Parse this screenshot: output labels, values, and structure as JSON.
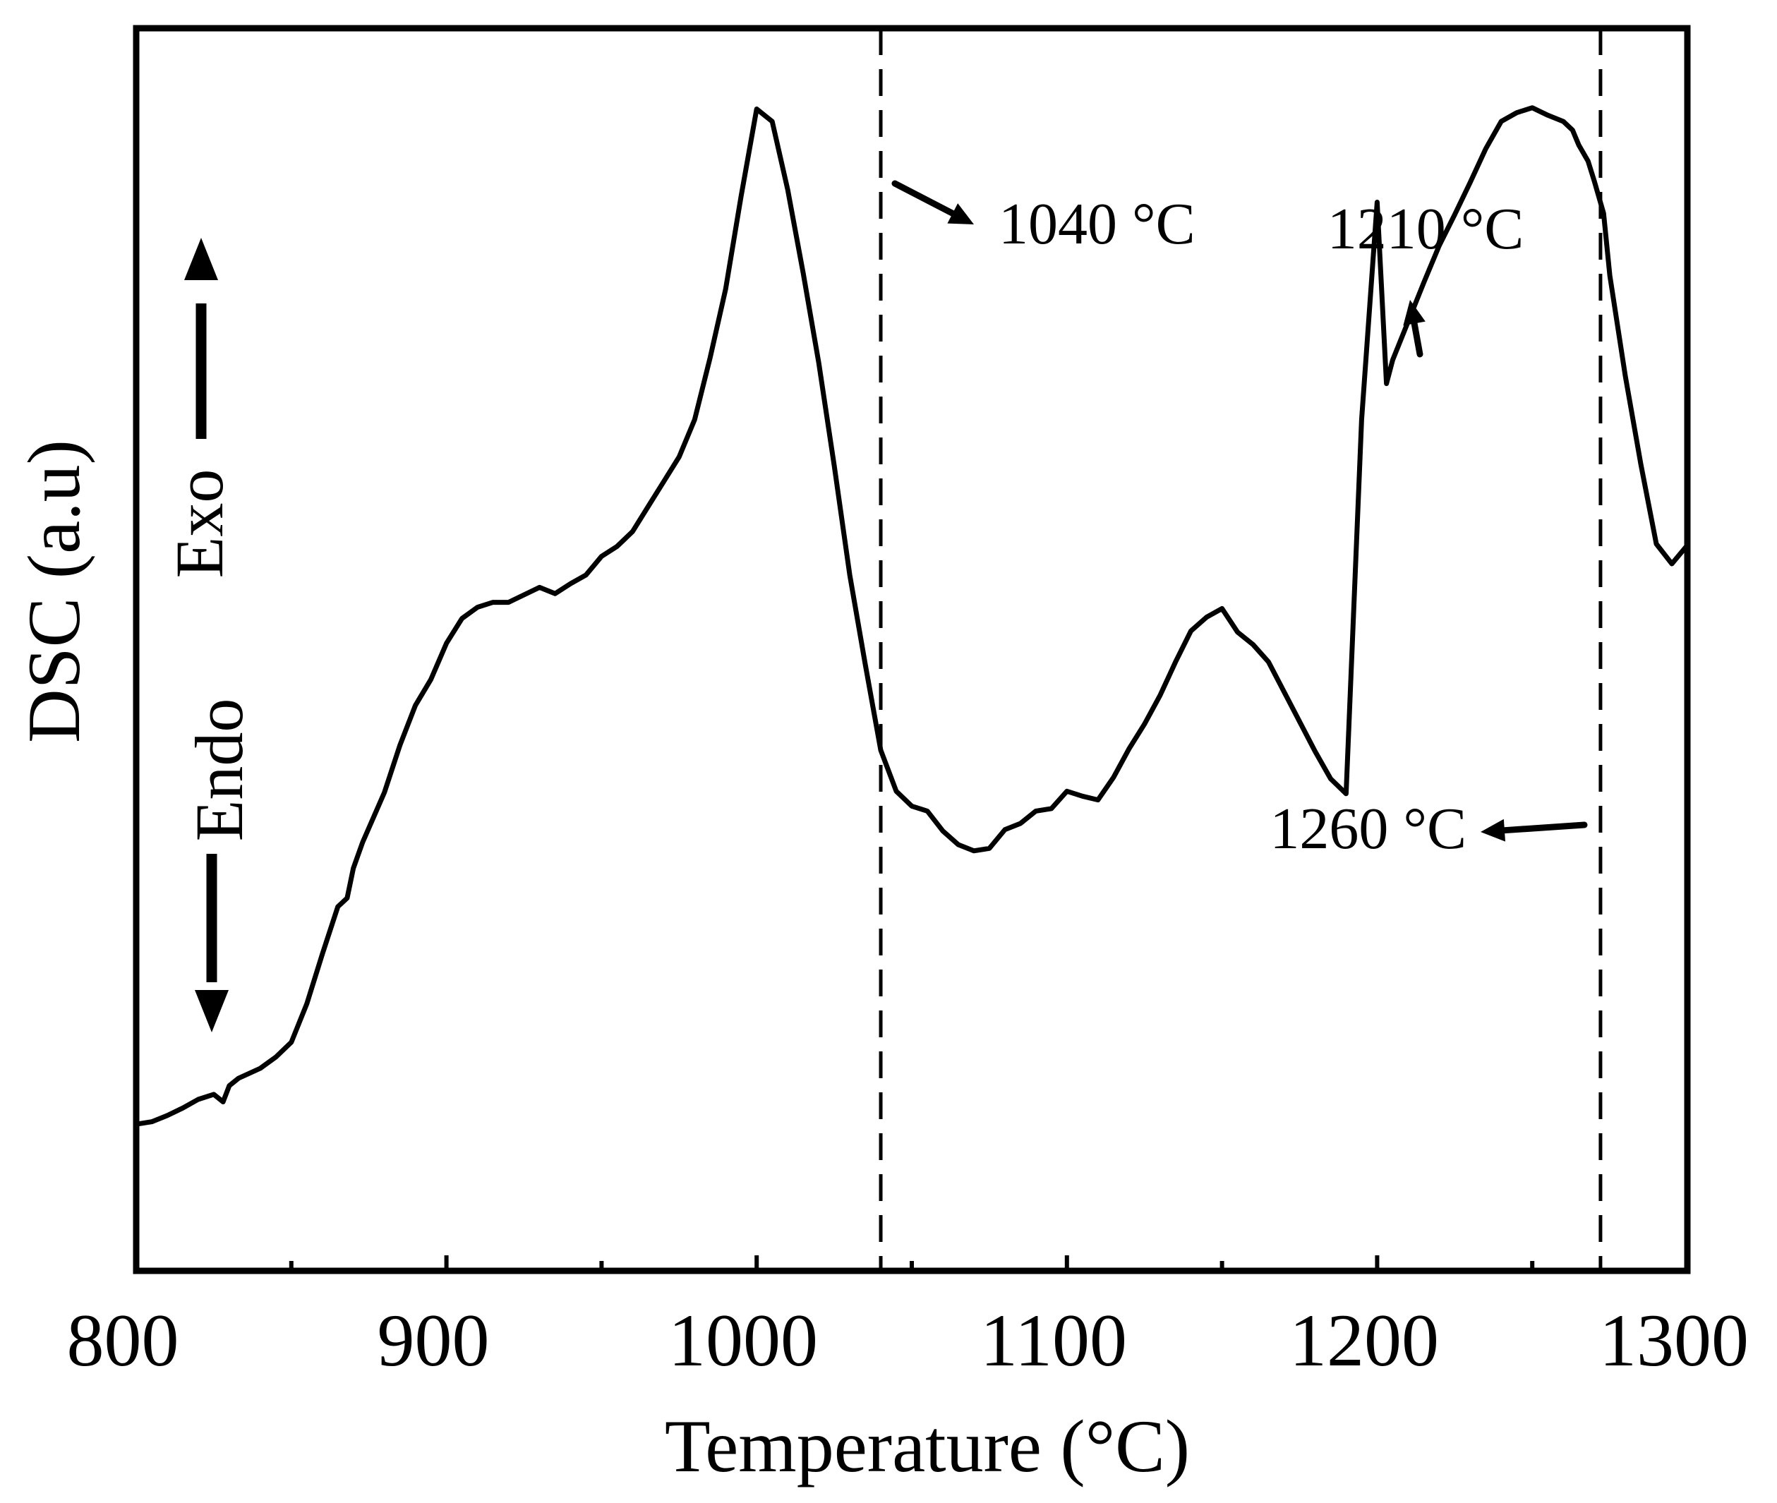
{
  "chart_data": {
    "type": "line",
    "title": "",
    "xlabel": "Temperature (°C)",
    "ylabel": "DSC (a.u)",
    "xlim": [
      800,
      1300
    ],
    "ylim": [
      0,
      100
    ],
    "x_ticks": [
      800,
      900,
      1000,
      1100,
      1200,
      1300
    ],
    "x_tick_labels": [
      "800",
      "900",
      "1000",
      "1100",
      "1200",
      "1300"
    ],
    "x_minor_ticks": [
      850,
      950,
      1050,
      1150,
      1250
    ],
    "grid": false,
    "y_tick_labels_shown": false,
    "series": [
      {
        "name": "DSC",
        "x": [
          800,
          805,
          810,
          815,
          820,
          825,
          828,
          830,
          833,
          840,
          845,
          850,
          855,
          860,
          865,
          868,
          870,
          873,
          880,
          885,
          890,
          895,
          900,
          905,
          910,
          915,
          920,
          925,
          930,
          935,
          940,
          945,
          950,
          955,
          960,
          965,
          970,
          975,
          980,
          985,
          990,
          995,
          1000,
          1005,
          1010,
          1015,
          1020,
          1025,
          1030,
          1035,
          1040,
          1045,
          1050,
          1055,
          1060,
          1065,
          1070,
          1075,
          1080,
          1085,
          1090,
          1095,
          1100,
          1105,
          1110,
          1115,
          1120,
          1125,
          1130,
          1135,
          1140,
          1145,
          1150,
          1155,
          1160,
          1165,
          1170,
          1175,
          1180,
          1185,
          1190,
          1195,
          1200,
          1203,
          1205,
          1210,
          1215,
          1220,
          1225,
          1230,
          1235,
          1240,
          1245,
          1250,
          1255,
          1260,
          1263,
          1265,
          1268,
          1270,
          1273,
          1275,
          1280,
          1285,
          1290,
          1295,
          1300
        ],
        "values": [
          11.8,
          12.0,
          12.5,
          13.1,
          13.8,
          14.2,
          13.6,
          14.9,
          15.5,
          16.3,
          17.2,
          18.4,
          21.5,
          25.5,
          29.3,
          30.0,
          32.4,
          34.5,
          38.5,
          42.3,
          45.5,
          47.6,
          50.5,
          52.5,
          53.4,
          53.8,
          53.8,
          54.4,
          55.0,
          54.5,
          55.3,
          56.0,
          57.5,
          58.3,
          59.5,
          61.5,
          63.5,
          65.5,
          68.5,
          73.5,
          79.0,
          86.5,
          93.5,
          92.5,
          87.0,
          80.3,
          73.1,
          64.8,
          56.0,
          48.8,
          41.9,
          38.6,
          37.4,
          37.0,
          35.4,
          34.3,
          33.8,
          34.0,
          35.5,
          36.0,
          37.0,
          37.2,
          38.6,
          38.2,
          37.9,
          39.7,
          42.0,
          44.0,
          46.3,
          49.0,
          51.5,
          52.6,
          53.3,
          51.4,
          50.4,
          49.0,
          46.6,
          44.2,
          41.8,
          39.6,
          38.4,
          68.5,
          86.0,
          71.4,
          73.3,
          76.4,
          79.5,
          82.5,
          85.0,
          87.6,
          90.3,
          92.5,
          93.2,
          93.6,
          93.0,
          92.5,
          91.8,
          90.6,
          89.3,
          87.7,
          85.1,
          80.1,
          72.0,
          64.9,
          58.5,
          56.9,
          58.4
        ]
      }
    ],
    "annotations": [
      {
        "label": "1040 °C",
        "x": 1040,
        "kind": "exothermic peak"
      },
      {
        "label": "1210 °C",
        "x": 1210,
        "kind": "exothermic peak"
      },
      {
        "label": "1260 °C",
        "x": 1272,
        "kind": "endothermic peak"
      }
    ],
    "reference_lines_x": [
      1040,
      1272
    ],
    "direction_labels": {
      "exo": "Exo",
      "endo": "Endo"
    }
  }
}
